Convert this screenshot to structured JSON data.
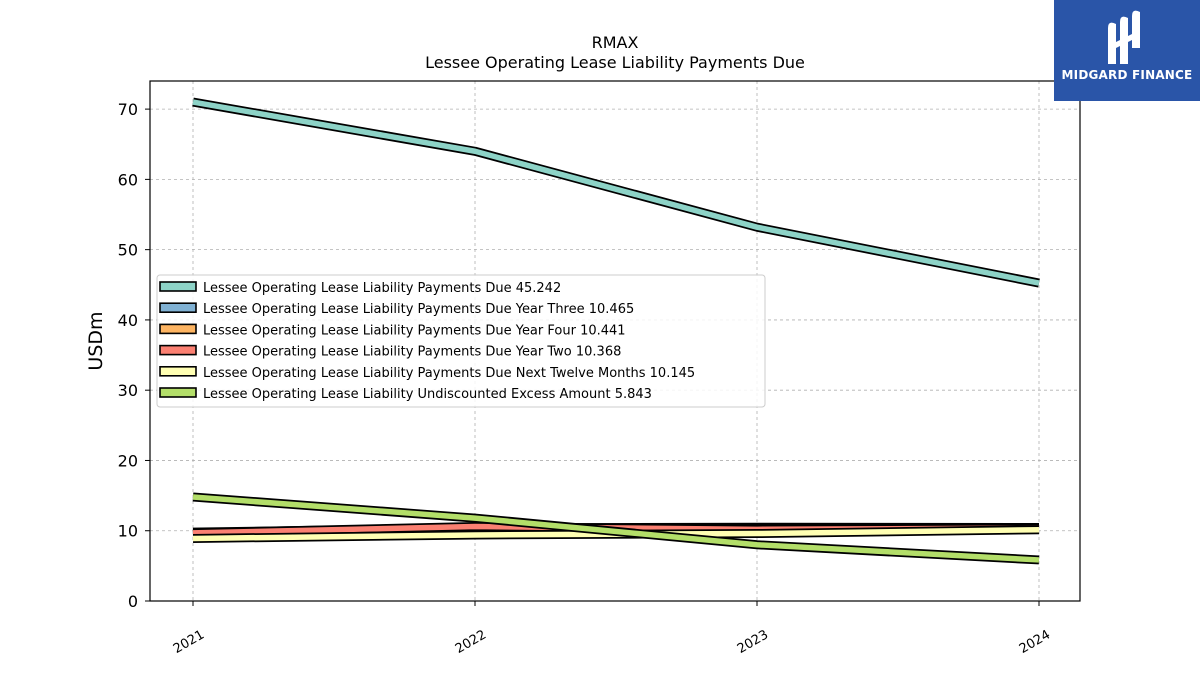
{
  "chart_data": {
    "type": "line",
    "title": "RMAX",
    "subtitle": "Lessee Operating Lease Liability Payments Due",
    "ylabel": "USDm",
    "xlabel": "",
    "x": [
      "2021",
      "2022",
      "2023",
      "2024"
    ],
    "ylim": [
      0,
      74
    ],
    "yticks": [
      0,
      10,
      20,
      30,
      40,
      50,
      60,
      70
    ],
    "grid": true,
    "legend_position": "center-left",
    "series": [
      {
        "name": "Lessee Operating Lease Liability Payments Due  45.242",
        "color": "#8dd3c7",
        "values": [
          71.0,
          64.0,
          53.2,
          45.242
        ]
      },
      {
        "name": "Lessee Operating Lease Liability Payments Due Year Three  10.465",
        "color": "#80b1d3",
        "values": [
          9.8,
          10.4,
          10.5,
          10.465
        ]
      },
      {
        "name": "Lessee Operating Lease Liability Payments Due Year Four  10.441",
        "color": "#fdb462",
        "values": [
          9.6,
          10.3,
          10.4,
          10.441
        ]
      },
      {
        "name": "Lessee Operating Lease Liability Payments Due Year Two  10.368",
        "color": "#fb8072",
        "values": [
          9.7,
          10.6,
          10.2,
          10.368
        ]
      },
      {
        "name": "Lessee Operating Lease Liability Payments Due Next Twelve Months  10.145",
        "color": "#ffffb3",
        "values": [
          8.9,
          9.4,
          9.6,
          10.145
        ]
      },
      {
        "name": "Lessee Operating Lease Liability Undiscounted Excess Amount  5.843",
        "color": "#b3de69",
        "values": [
          14.8,
          11.8,
          8.0,
          5.843
        ]
      }
    ]
  },
  "logo": {
    "text": "MIDGARD FINANCE",
    "color": "#2a55a8"
  }
}
